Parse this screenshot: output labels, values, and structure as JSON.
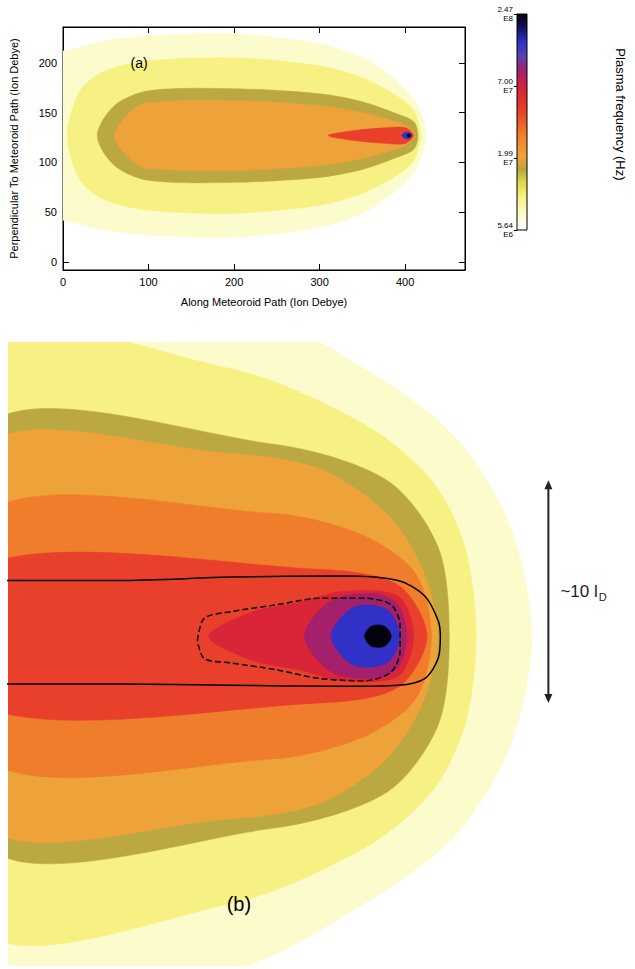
{
  "chart_data": [
    {
      "type": "contourf",
      "label": "(a)",
      "xlabel": "Along Meteoroid Path (Ion Debye)",
      "ylabel": "Perpendicular To Meteoroid Path (Ion Debye)",
      "xlim": [
        0,
        470
      ],
      "ylim": [
        -8,
        236
      ],
      "xticks": [
        0,
        100,
        200,
        300,
        400
      ],
      "yticks": [
        0,
        50,
        100,
        150,
        200
      ],
      "colorbar": {
        "title": "Plasma frequency (Hz)",
        "log": true,
        "range": [
          5640000,
          247000000
        ],
        "ticks": [
          {
            "value": 5640000,
            "label": "5.64\nE6"
          },
          {
            "value": 19900000,
            "label": "1.99\nE7"
          },
          {
            "value": 70000000,
            "label": "7.00\nE7"
          },
          {
            "value": 247000000,
            "label": "2.47\nE8"
          }
        ]
      },
      "regions": [
        {
          "value": 7500000,
          "points": [
            [
              -10,
              212
            ],
            [
              0,
              212
            ],
            [
              50,
              222
            ],
            [
              100,
              227
            ],
            [
              200,
              229
            ],
            [
              300,
              219
            ],
            [
              350,
              205
            ],
            [
              390,
              182
            ],
            [
              415,
              157
            ],
            [
              424,
              127
            ],
            [
              415,
              97
            ],
            [
              390,
              72
            ],
            [
              350,
              49
            ],
            [
              300,
              35
            ],
            [
              200,
              25
            ],
            [
              100,
              27
            ],
            [
              50,
              32
            ],
            [
              0,
              42
            ],
            [
              -10,
              42
            ]
          ]
        },
        {
          "value": 10000000,
          "points": [
            [
              5,
              127
            ],
            [
              20,
              172
            ],
            [
              50,
              192
            ],
            [
              100,
              202
            ],
            [
              200,
              205
            ],
            [
              300,
              197
            ],
            [
              350,
              185
            ],
            [
              390,
              167
            ],
            [
              410,
              152
            ],
            [
              418,
              127
            ],
            [
              410,
              102
            ],
            [
              390,
              87
            ],
            [
              350,
              69
            ],
            [
              300,
              57
            ],
            [
              200,
              49
            ],
            [
              100,
              52
            ],
            [
              50,
              62
            ],
            [
              20,
              82
            ]
          ]
        },
        {
          "value": 16000000,
          "points": [
            [
              40,
              127
            ],
            [
              60,
              157
            ],
            [
              100,
              172
            ],
            [
              200,
              174
            ],
            [
              300,
              169
            ],
            [
              350,
              161
            ],
            [
              390,
              149
            ],
            [
              410,
              141
            ],
            [
              415,
              127
            ],
            [
              410,
              113
            ],
            [
              390,
              105
            ],
            [
              350,
              93
            ],
            [
              300,
              85
            ],
            [
              200,
              80
            ],
            [
              100,
              82
            ],
            [
              60,
              97
            ]
          ]
        },
        {
          "value": 20000000,
          "points": [
            [
              60,
              127
            ],
            [
              80,
              152
            ],
            [
              100,
              160
            ],
            [
              200,
              162
            ],
            [
              300,
              157
            ],
            [
              350,
              150
            ],
            [
              380,
              143
            ],
            [
              400,
              137
            ],
            [
              412,
              127
            ],
            [
              400,
              117
            ],
            [
              380,
              111
            ],
            [
              350,
              104
            ],
            [
              300,
              97
            ],
            [
              200,
              92
            ],
            [
              100,
              94
            ],
            [
              80,
              102
            ]
          ]
        },
        {
          "value": 45000000,
          "points": [
            [
              310,
              127
            ],
            [
              340,
              132
            ],
            [
              380,
              135
            ],
            [
              400,
              135
            ],
            [
              410,
              127
            ],
            [
              400,
              119
            ],
            [
              380,
              119
            ],
            [
              340,
              122
            ]
          ]
        },
        {
          "value": 150000000,
          "points": [
            [
              396,
              127
            ],
            [
              400,
              130
            ],
            [
              405,
              130
            ],
            [
              408,
              127
            ],
            [
              405,
              124
            ],
            [
              400,
              124
            ]
          ]
        },
        {
          "value": 240000000,
          "points": [
            [
              402,
              127
            ],
            [
              403.5,
              128.5
            ],
            [
              405.5,
              128.5
            ],
            [
              406.5,
              127
            ],
            [
              405.5,
              125.5
            ],
            [
              403.5,
              125.5
            ]
          ]
        }
      ]
    },
    {
      "type": "contourf",
      "label": "(b)",
      "tick_labels": false,
      "xlim": [
        0,
        28
      ],
      "ylim": [
        0,
        28
      ],
      "regions": [
        {
          "value": 7500000,
          "points": [
            [
              -1,
              30.8
            ],
            [
              10,
              29.8
            ],
            [
              16,
              26.8
            ],
            [
              20,
              23.8
            ],
            [
              22.5,
              19.8
            ],
            [
              23.5,
              14.8
            ],
            [
              22.5,
              9.8
            ],
            [
              20,
              5.8
            ],
            [
              16,
              2.8
            ],
            [
              10,
              -0.2
            ],
            [
              -1,
              -1.2
            ]
          ]
        },
        {
          "value": 10000000,
          "points": [
            [
              -1,
              27.8
            ],
            [
              10,
              26.8
            ],
            [
              16,
              24.3
            ],
            [
              19,
              21.8
            ],
            [
              20.5,
              18.8
            ],
            [
              21,
              14.8
            ],
            [
              20.5,
              10.8
            ],
            [
              19,
              7.8
            ],
            [
              16,
              5.3
            ],
            [
              10,
              2.8
            ],
            [
              -1,
              1.8
            ]
          ]
        },
        {
          "value": 16000000,
          "points": [
            [
              -1,
              24.1
            ],
            [
              12,
              23.4
            ],
            [
              17,
              21.8
            ],
            [
              19.3,
              18.8
            ],
            [
              19.8,
              14.8
            ],
            [
              19.3,
              10.8
            ],
            [
              17,
              7.8
            ],
            [
              12,
              6.2
            ],
            [
              -1,
              5.5
            ]
          ]
        },
        {
          "value": 20000000,
          "points": [
            [
              -1,
              23.2
            ],
            [
              10,
              23.0
            ],
            [
              14,
              22.3
            ],
            [
              17,
              20.3
            ],
            [
              18.6,
              17.8
            ],
            [
              19.3,
              14.8
            ],
            [
              18.6,
              11.8
            ],
            [
              17,
              9.3
            ],
            [
              14,
              7.3
            ],
            [
              10,
              6.6
            ],
            [
              -1,
              6.4
            ]
          ]
        },
        {
          "value": 30000000,
          "points": [
            [
              -1,
              20.3
            ],
            [
              12,
              20.3
            ],
            [
              16,
              19.3
            ],
            [
              18.3,
              17.6
            ],
            [
              19.0,
              14.8
            ],
            [
              18.3,
              12.0
            ],
            [
              16,
              10.3
            ],
            [
              12,
              9.3
            ],
            [
              -1,
              9.3
            ]
          ]
        },
        {
          "value": 45000000,
          "points": [
            [
              -1,
              18.0
            ],
            [
              14,
              17.8
            ],
            [
              17.5,
              17.1
            ],
            [
              18.8,
              14.8
            ],
            [
              17.5,
              12.5
            ],
            [
              14,
              11.8
            ],
            [
              -1,
              11.6
            ]
          ]
        },
        {
          "value": 65000000,
          "points": [
            [
              9,
              14.8
            ],
            [
              11,
              15.9
            ],
            [
              13,
              16.3
            ],
            [
              15,
              16.8
            ],
            [
              17.5,
              16.6
            ],
            [
              18.2,
              14.8
            ],
            [
              17.5,
              13.0
            ],
            [
              15,
              12.8
            ],
            [
              13,
              13.3
            ],
            [
              11,
              13.7
            ]
          ]
        },
        {
          "value": 90000000,
          "points": [
            [
              13.3,
              14.8
            ],
            [
              14.5,
              16.4
            ],
            [
              16.5,
              16.7
            ],
            [
              17.5,
              16.2
            ],
            [
              17.9,
              14.8
            ],
            [
              17.5,
              13.4
            ],
            [
              16.5,
              12.9
            ],
            [
              14.5,
              13.2
            ]
          ]
        },
        {
          "value": 150000000,
          "points": [
            [
              14.5,
              14.8
            ],
            [
              15.5,
              16.1
            ],
            [
              17,
              16.0
            ],
            [
              17.6,
              14.8
            ],
            [
              17,
              13.6
            ],
            [
              15.5,
              13.5
            ]
          ]
        },
        {
          "value": 240000000,
          "points": [
            [
              16.0,
              14.8
            ],
            [
              16.3,
              15.25
            ],
            [
              16.9,
              15.25
            ],
            [
              17.2,
              14.8
            ],
            [
              16.9,
              14.35
            ],
            [
              16.3,
              14.35
            ]
          ]
        }
      ],
      "contours": [
        {
          "line_style": "solid",
          "points": [
            [
              -0.5,
              17.3
            ],
            [
              5,
              17.3
            ],
            [
              10,
              17.45
            ],
            [
              15,
              17.5
            ],
            [
              17.5,
              17.3
            ],
            [
              18.7,
              16.6
            ],
            [
              19.3,
              15.5
            ],
            [
              19.4,
              14.8
            ],
            [
              19.3,
              13.8
            ],
            [
              18.7,
              12.9
            ],
            [
              17.5,
              12.6
            ],
            [
              15,
              12.55
            ],
            [
              10,
              12.6
            ],
            [
              5,
              12.65
            ],
            [
              -0.5,
              12.65
            ]
          ]
        },
        {
          "line_style": "dashed",
          "points": [
            [
              8.5,
              14.6
            ],
            [
              8.8,
              15.6
            ],
            [
              10,
              15.9
            ],
            [
              12,
              16.2
            ],
            [
              14,
              16.5
            ],
            [
              16,
              16.5
            ],
            [
              17.2,
              16.2
            ],
            [
              17.6,
              15.2
            ],
            [
              17.6,
              14.2
            ],
            [
              17.2,
              13.2
            ],
            [
              16,
              12.8
            ],
            [
              14,
              12.9
            ],
            [
              12,
              13.3
            ],
            [
              10,
              13.6
            ],
            [
              8.8,
              13.8
            ],
            [
              8.5,
              14.6
            ]
          ]
        }
      ],
      "annotation": {
        "text": "~10 l",
        "subscript": "D",
        "length": 10
      }
    }
  ]
}
